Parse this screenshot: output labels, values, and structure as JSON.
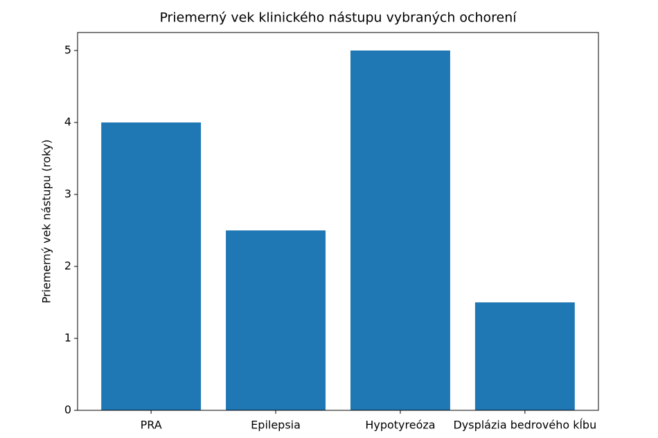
{
  "chart_data": {
    "type": "bar",
    "title": "Priemerný vek klinického nástupu vybraných ochorení",
    "y_label": "Priemerný vek nástupu (roky)",
    "categories": [
      "PRA",
      "Epilepsia",
      "Hypotyreóza",
      "Dysplázia bedrového kĺbu"
    ],
    "values": [
      4,
      2.5,
      5,
      1.5
    ],
    "color": "#1f77b4",
    "ylim": [
      0,
      5.25
    ],
    "yticks": [
      0,
      1,
      2,
      3,
      4,
      5
    ],
    "grid": false
  }
}
